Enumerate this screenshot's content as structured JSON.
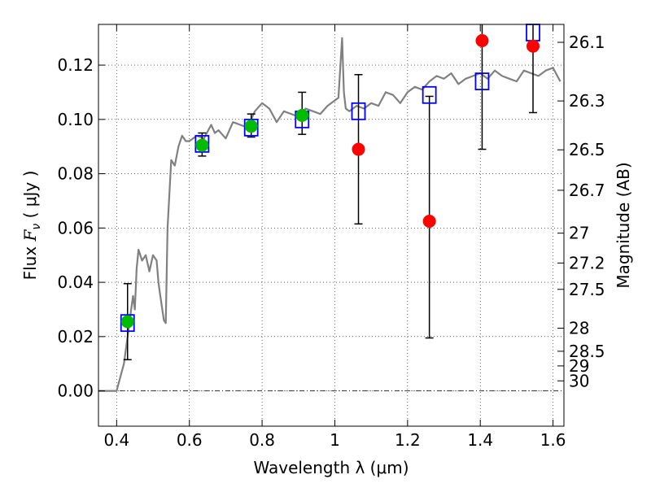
{
  "chart_data": {
    "type": "scatter",
    "xlabel": "Wavelength  λ (μm)",
    "ylabel": "Flux  F_ν  ( μJy )",
    "ylabel_parts": {
      "pre": "Flux  ",
      "sym": "F",
      "sub": "ν",
      "post": "  (  μJy )"
    },
    "y2label": "Magnitude (AB)",
    "xlim": [
      0.35,
      1.63
    ],
    "ylim": [
      -0.013,
      0.135
    ],
    "grid": true,
    "x_ticks": [
      0.4,
      0.6,
      0.8,
      1.0,
      1.2,
      1.4,
      1.6
    ],
    "x_tick_labels": [
      "0.4",
      "0.6",
      "0.8",
      "1",
      "1.2",
      "1.4",
      "1.6"
    ],
    "y_ticks": [
      0.0,
      0.02,
      0.04,
      0.06,
      0.08,
      0.1,
      0.12
    ],
    "y_tick_labels": [
      "0.00",
      "0.02",
      "0.04",
      "0.06",
      "0.08",
      "0.10",
      "0.12"
    ],
    "mag_ticks": [
      {
        "label": "26.1",
        "flux": 0.1284
      },
      {
        "label": "26.3",
        "flux": 0.1068
      },
      {
        "label": "26.5",
        "flux": 0.0888
      },
      {
        "label": "26.7",
        "flux": 0.0739
      },
      {
        "label": "27",
        "flux": 0.0581
      },
      {
        "label": "27.2",
        "flux": 0.0471
      },
      {
        "label": "27.5",
        "flux": 0.0374
      },
      {
        "label": "28",
        "flux": 0.0231
      },
      {
        "label": "28.5",
        "flux": 0.0146
      },
      {
        "label": "29",
        "flux": 0.0092
      },
      {
        "label": "30",
        "flux": 0.0037
      }
    ],
    "series": [
      {
        "kind": "sed-model-line",
        "color": "#808080",
        "x": [
          0.35,
          0.39,
          0.4,
          0.41,
          0.42,
          0.43,
          0.44,
          0.445,
          0.45,
          0.455,
          0.46,
          0.47,
          0.48,
          0.49,
          0.5,
          0.51,
          0.515,
          0.52,
          0.53,
          0.535,
          0.54,
          0.55,
          0.56,
          0.57,
          0.58,
          0.59,
          0.6,
          0.62,
          0.64,
          0.66,
          0.67,
          0.68,
          0.7,
          0.72,
          0.74,
          0.76,
          0.78,
          0.8,
          0.82,
          0.84,
          0.86,
          0.88,
          0.9,
          0.92,
          0.94,
          0.96,
          0.98,
          1.0,
          1.01,
          1.02,
          1.025,
          1.03,
          1.04,
          1.06,
          1.08,
          1.1,
          1.12,
          1.14,
          1.16,
          1.18,
          1.2,
          1.22,
          1.24,
          1.26,
          1.28,
          1.3,
          1.32,
          1.34,
          1.36,
          1.38,
          1.4,
          1.42,
          1.44,
          1.46,
          1.48,
          1.5,
          1.52,
          1.54,
          1.56,
          1.58,
          1.6,
          1.62
        ],
        "y": [
          0.0,
          0.0,
          0.0,
          0.005,
          0.01,
          0.02,
          0.03,
          0.035,
          0.03,
          0.045,
          0.052,
          0.048,
          0.05,
          0.044,
          0.05,
          0.048,
          0.04,
          0.035,
          0.026,
          0.025,
          0.06,
          0.085,
          0.083,
          0.09,
          0.094,
          0.092,
          0.092,
          0.094,
          0.093,
          0.098,
          0.095,
          0.096,
          0.093,
          0.099,
          0.098,
          0.097,
          0.103,
          0.106,
          0.104,
          0.099,
          0.103,
          0.102,
          0.101,
          0.104,
          0.103,
          0.102,
          0.105,
          0.107,
          0.108,
          0.13,
          0.11,
          0.104,
          0.103,
          0.105,
          0.104,
          0.106,
          0.105,
          0.11,
          0.109,
          0.106,
          0.11,
          0.112,
          0.111,
          0.114,
          0.116,
          0.115,
          0.117,
          0.113,
          0.115,
          0.116,
          0.117,
          0.115,
          0.118,
          0.116,
          0.115,
          0.114,
          0.118,
          0.117,
          0.116,
          0.118,
          0.119,
          0.114
        ]
      },
      {
        "kind": "blue-open-squares",
        "color": "#0000ff",
        "x": [
          0.43,
          0.635,
          0.77,
          0.91,
          1.065,
          1.26,
          1.405,
          1.545
        ],
        "y": [
          0.025,
          0.091,
          0.097,
          0.1,
          0.103,
          0.109,
          0.114,
          0.132
        ]
      },
      {
        "kind": "green-dots",
        "color": "#00bb00",
        "x": [
          0.43,
          0.635,
          0.77,
          0.91
        ],
        "y": [
          0.0255,
          0.0905,
          0.0975,
          0.1015
        ]
      },
      {
        "kind": "red-dots",
        "color": "#ff0000",
        "x": [
          1.065,
          1.26,
          1.405,
          1.545
        ],
        "y": [
          0.089,
          0.0625,
          0.129,
          0.127
        ]
      },
      {
        "kind": "error-bars",
        "color": "#000000",
        "x": [
          0.43,
          0.635,
          0.77,
          0.91,
          1.065,
          1.26,
          1.405,
          1.545
        ],
        "lo": [
          0.0115,
          0.0865,
          0.0935,
          0.0945,
          0.0615,
          0.0195,
          0.089,
          0.1025
        ],
        "hi": [
          0.0395,
          0.095,
          0.102,
          0.11,
          0.1165,
          0.1085,
          0.136,
          0.136
        ]
      }
    ]
  }
}
